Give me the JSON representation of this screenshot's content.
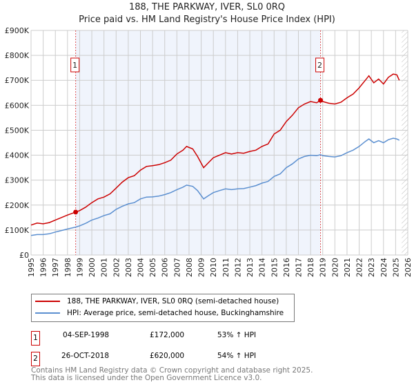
{
  "title": "188, THE PARKWAY, IVER, SL0 0RQ",
  "subtitle": "Price paid vs. HM Land Registry's House Price Index (HPI)",
  "chart_data": {
    "type": "line",
    "title": "188, THE PARKWAY, IVER, SL0 0RQ — Price paid vs. HM Land Registry's House Price Index (HPI)",
    "xlim": [
      1995,
      2026
    ],
    "ylim": [
      0,
      900000
    ],
    "x_ticks": [
      "1995",
      "1996",
      "1997",
      "1998",
      "1999",
      "2000",
      "2001",
      "2002",
      "2003",
      "2004",
      "2005",
      "2006",
      "2007",
      "2008",
      "2009",
      "2010",
      "2011",
      "2012",
      "2013",
      "2014",
      "2015",
      "2016",
      "2017",
      "2018",
      "2019",
      "2020",
      "2021",
      "2022",
      "2023",
      "2024",
      "2025",
      "2026"
    ],
    "y_ticks": [
      {
        "v": 0,
        "label": "£0"
      },
      {
        "v": 100000,
        "label": "£100K"
      },
      {
        "v": 200000,
        "label": "£200K"
      },
      {
        "v": 300000,
        "label": "£300K"
      },
      {
        "v": 400000,
        "label": "£400K"
      },
      {
        "v": 500000,
        "label": "£500K"
      },
      {
        "v": 600000,
        "label": "£600K"
      },
      {
        "v": 700000,
        "label": "£700K"
      },
      {
        "v": 800000,
        "label": "£800K"
      },
      {
        "v": 900000,
        "label": "£900K"
      }
    ],
    "grid": true,
    "shaded_range": [
      1998.67,
      2018.82
    ],
    "series": [
      {
        "name": "188, THE PARKWAY, IVER, SL0 0RQ (semi-detached house)",
        "color": "#cc0000",
        "x": [
          1995,
          1995.5,
          1996,
          1996.5,
          1997,
          1997.5,
          1998,
          1998.67,
          1999,
          1999.5,
          2000,
          2000.5,
          2001,
          2001.5,
          2002,
          2002.5,
          2003,
          2003.5,
          2004,
          2004.5,
          2005,
          2005.5,
          2006,
          2006.5,
          2007,
          2007.5,
          2007.8,
          2008.3,
          2008.7,
          2009.2,
          2009.6,
          2010,
          2010.5,
          2011,
          2011.5,
          2012,
          2012.5,
          2013,
          2013.5,
          2014,
          2014.5,
          2015,
          2015.5,
          2016,
          2016.5,
          2017,
          2017.5,
          2018,
          2018.5,
          2018.82,
          2019,
          2019.5,
          2020,
          2020.5,
          2021,
          2021.5,
          2022,
          2022.5,
          2022.8,
          2023.2,
          2023.6,
          2024,
          2024.4,
          2024.8,
          2025.1,
          2025.3
        ],
        "y": [
          120000,
          128000,
          125000,
          130000,
          140000,
          150000,
          160000,
          172000,
          178000,
          192000,
          210000,
          225000,
          232000,
          245000,
          268000,
          292000,
          310000,
          318000,
          340000,
          355000,
          358000,
          362000,
          370000,
          380000,
          405000,
          420000,
          435000,
          425000,
          395000,
          350000,
          370000,
          390000,
          400000,
          410000,
          405000,
          410000,
          408000,
          415000,
          420000,
          435000,
          445000,
          485000,
          500000,
          535000,
          560000,
          590000,
          605000,
          615000,
          610000,
          620000,
          615000,
          608000,
          605000,
          612000,
          630000,
          645000,
          670000,
          700000,
          718000,
          690000,
          705000,
          685000,
          712000,
          725000,
          722000,
          700000
        ]
      },
      {
        "name": "HPI: Average price, semi-detached house, Buckinghamshire",
        "color": "#5b8fd0",
        "x": [
          1995,
          1995.5,
          1996,
          1996.5,
          1997,
          1997.5,
          1998,
          1998.67,
          1999,
          1999.5,
          2000,
          2000.5,
          2001,
          2001.5,
          2002,
          2002.5,
          2003,
          2003.5,
          2004,
          2004.5,
          2005,
          2005.5,
          2006,
          2006.5,
          2007,
          2007.5,
          2007.8,
          2008.3,
          2008.7,
          2009.2,
          2009.6,
          2010,
          2010.5,
          2011,
          2011.5,
          2012,
          2012.5,
          2013,
          2013.5,
          2014,
          2014.5,
          2015,
          2015.5,
          2016,
          2016.5,
          2017,
          2017.5,
          2018,
          2018.5,
          2018.82,
          2019,
          2019.5,
          2020,
          2020.5,
          2021,
          2021.5,
          2022,
          2022.5,
          2022.8,
          2023.2,
          2023.6,
          2024,
          2024.4,
          2024.8,
          2025.1,
          2025.3
        ],
        "y": [
          78000,
          82000,
          82000,
          85000,
          92000,
          98000,
          104000,
          112000,
          117000,
          127000,
          140000,
          148000,
          158000,
          165000,
          183000,
          195000,
          205000,
          210000,
          225000,
          232000,
          233000,
          236000,
          242000,
          250000,
          262000,
          272000,
          280000,
          275000,
          258000,
          225000,
          238000,
          250000,
          258000,
          265000,
          262000,
          265000,
          266000,
          272000,
          278000,
          288000,
          295000,
          315000,
          325000,
          350000,
          365000,
          385000,
          395000,
          400000,
          398000,
          402000,
          398000,
          395000,
          393000,
          398000,
          410000,
          420000,
          435000,
          455000,
          465000,
          450000,
          458000,
          450000,
          462000,
          468000,
          465000,
          460000
        ]
      }
    ],
    "sales": [
      {
        "label": "1",
        "x": 1998.67,
        "y": 172000
      },
      {
        "label": "2",
        "x": 2018.82,
        "y": 620000
      }
    ],
    "legend_position": "below"
  },
  "legend": {
    "items": [
      {
        "label": "188, THE PARKWAY, IVER, SL0 0RQ (semi-detached house)",
        "color": "#cc0000"
      },
      {
        "label": "HPI: Average price, semi-detached house, Buckinghamshire",
        "color": "#5b8fd0"
      }
    ]
  },
  "transactions": [
    {
      "num": "1",
      "date": "04-SEP-1998",
      "price": "£172,000",
      "hpi": "53% ↑ HPI"
    },
    {
      "num": "2",
      "date": "26-OCT-2018",
      "price": "£620,000",
      "hpi": "54% ↑ HPI"
    }
  ],
  "footer": {
    "line1": "Contains HM Land Registry data © Crown copyright and database right 2025.",
    "line2": "This data is licensed under the Open Government Licence v3.0."
  }
}
